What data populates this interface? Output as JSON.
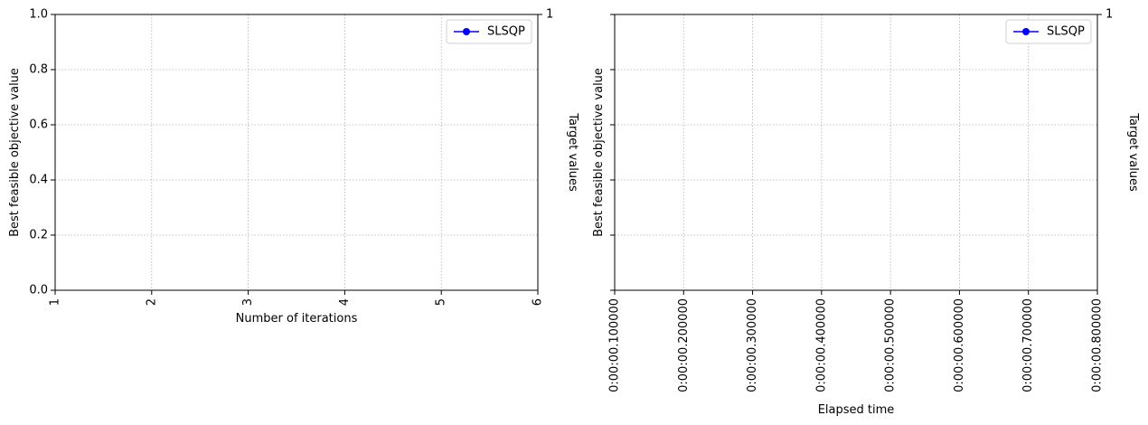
{
  "chart_data": [
    {
      "type": "line",
      "xlabel": "Number of iterations",
      "ylabel": "Best feasible objective value",
      "ylabel_right": "Target values",
      "xlim": [
        1,
        6
      ],
      "ylim": [
        0,
        1
      ],
      "x_ticks": [
        "1",
        "2",
        "3",
        "4",
        "5",
        "6"
      ],
      "y_ticks": [
        "0.0",
        "0.2",
        "0.4",
        "0.6",
        "0.8",
        "1.0"
      ],
      "right_y_ticks": [
        "1"
      ],
      "grid": true,
      "legend_position": "top-right",
      "series": [
        {
          "name": "SLSQP",
          "color": "#0000ff",
          "marker": "circle",
          "x": [],
          "y": []
        }
      ]
    },
    {
      "type": "line",
      "xlabel": "Elapsed time",
      "ylabel": "Best feasible objective value",
      "ylabel_right": "Target values",
      "xlim": [
        "0:00:00.100000",
        "0:00:00.800000"
      ],
      "x_ticks": [
        "0:00:00.100000",
        "0:00:00.200000",
        "0:00:00.300000",
        "0:00:00.400000",
        "0:00:00.500000",
        "0:00:00.600000",
        "0:00:00.700000",
        "0:00:00.800000"
      ],
      "y_ticks": [
        "",
        "",
        "",
        "",
        "",
        ""
      ],
      "right_y_ticks": [
        "1"
      ],
      "grid": true,
      "legend_position": "top-right",
      "series": [
        {
          "name": "SLSQP",
          "color": "#0000ff",
          "marker": "circle",
          "x": [],
          "y": []
        }
      ]
    }
  ]
}
